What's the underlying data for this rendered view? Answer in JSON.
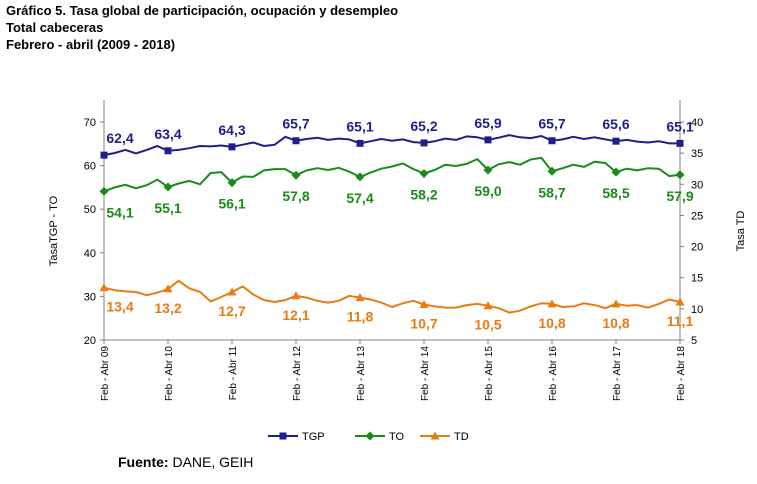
{
  "header": {
    "line1": "Gráfico 5. Tasa global de participación, ocupación y desempleo",
    "line2": "Total cabeceras",
    "line3": "Febrero - abril (2009 - 2018)"
  },
  "footer": {
    "source_label": "Fuente:",
    "source_text": "DANE, GEIH"
  },
  "colors": {
    "TGP": "#1f1f8c",
    "TO": "#1a8a1a",
    "TD": "#e87b12",
    "axis": "#808080"
  },
  "chart_data": {
    "type": "line",
    "title": "Tasa global de participación, ocupación y desempleo",
    "x": [
      "Feb - Abr 09",
      "Feb - Abr 10",
      "Feb - Abr 11",
      "Feb - Abr 12",
      "Feb - Abr 13",
      "Feb - Abr 14",
      "Feb - Abr 15",
      "Feb - Abr 16",
      "Feb - Abr 17",
      "Feb - Abr 18"
    ],
    "ylabel": "TasaTGP - TO",
    "y2label": "Tasa TD",
    "ylim": [
      20,
      70
    ],
    "yticks": [
      20,
      30,
      40,
      50,
      60,
      70
    ],
    "y2lim": [
      5,
      40
    ],
    "y2ticks": [
      5,
      10,
      15,
      20,
      25,
      30,
      35,
      40
    ],
    "legend_position": "bottom",
    "series": [
      {
        "name": "TGP",
        "axis": "left",
        "marker": "square",
        "values": [
          62.4,
          63.4,
          64.3,
          65.7,
          65.1,
          65.2,
          65.9,
          65.7,
          65.6,
          65.1
        ],
        "labels": [
          "62,4",
          "63,4",
          "64,3",
          "65,7",
          "65,1",
          "65,2",
          "65,9",
          "65,7",
          "65,6",
          "65,1"
        ],
        "detail": [
          62.4,
          62.9,
          63.6,
          62.8,
          63.6,
          64.5,
          63.4,
          63.6,
          64.0,
          64.5,
          64.4,
          64.6,
          64.3,
          64.8,
          65.3,
          64.5,
          64.8,
          66.6,
          65.7,
          66.1,
          66.4,
          65.9,
          66.2,
          66.0,
          65.1,
          65.6,
          66.1,
          65.7,
          66.0,
          65.4,
          65.2,
          65.6,
          66.2,
          65.9,
          66.7,
          66.5,
          65.9,
          66.4,
          67.0,
          66.5,
          66.3,
          66.8,
          65.7,
          66.0,
          66.6,
          66.1,
          66.5,
          66.0,
          65.6,
          65.9,
          65.5,
          65.3,
          65.6,
          65.1,
          65.1
        ]
      },
      {
        "name": "TO",
        "axis": "left",
        "marker": "diamond",
        "values": [
          54.1,
          55.1,
          56.1,
          57.8,
          57.4,
          58.2,
          59.0,
          58.7,
          58.5,
          57.9
        ],
        "labels": [
          "54,1",
          "55,1",
          "56,1",
          "57,8",
          "57,4",
          "58,2",
          "59,0",
          "58,7",
          "58,5",
          "57,9"
        ],
        "detail": [
          54.1,
          55.0,
          55.6,
          54.8,
          55.5,
          56.8,
          55.1,
          55.9,
          56.5,
          55.7,
          58.3,
          58.5,
          56.1,
          57.5,
          57.4,
          58.9,
          59.2,
          59.2,
          57.8,
          58.9,
          59.4,
          59.0,
          59.5,
          58.6,
          57.4,
          58.4,
          59.3,
          59.8,
          60.5,
          59.2,
          58.2,
          59.0,
          60.2,
          59.9,
          60.4,
          61.5,
          59.0,
          60.3,
          60.8,
          60.2,
          61.4,
          61.8,
          58.7,
          59.4,
          60.2,
          59.7,
          60.9,
          60.6,
          58.5,
          59.3,
          58.9,
          59.4,
          59.3,
          57.6,
          57.9
        ]
      },
      {
        "name": "TD",
        "axis": "right",
        "marker": "triangle",
        "values": [
          13.4,
          13.2,
          12.7,
          12.1,
          11.8,
          10.7,
          10.5,
          10.8,
          10.8,
          11.1
        ],
        "labels": [
          "13,4",
          "13,2",
          "12,7",
          "12,1",
          "11,8",
          "10,7",
          "10,5",
          "10,8",
          "10,8",
          "11,1"
        ],
        "detail": [
          13.4,
          13.0,
          12.8,
          12.7,
          12.2,
          12.6,
          13.2,
          14.5,
          13.3,
          12.7,
          11.2,
          11.9,
          12.7,
          13.6,
          12.3,
          11.4,
          11.1,
          11.4,
          12.1,
          11.8,
          11.3,
          11.0,
          11.3,
          12.1,
          11.8,
          11.5,
          11.0,
          10.3,
          10.9,
          11.3,
          10.7,
          10.4,
          10.2,
          10.2,
          10.6,
          10.8,
          10.5,
          10.1,
          9.4,
          9.7,
          10.4,
          10.9,
          10.8,
          10.3,
          10.4,
          10.9,
          10.6,
          10.1,
          10.8,
          10.5,
          10.6,
          10.2,
          10.8,
          11.5,
          11.1
        ]
      }
    ]
  }
}
